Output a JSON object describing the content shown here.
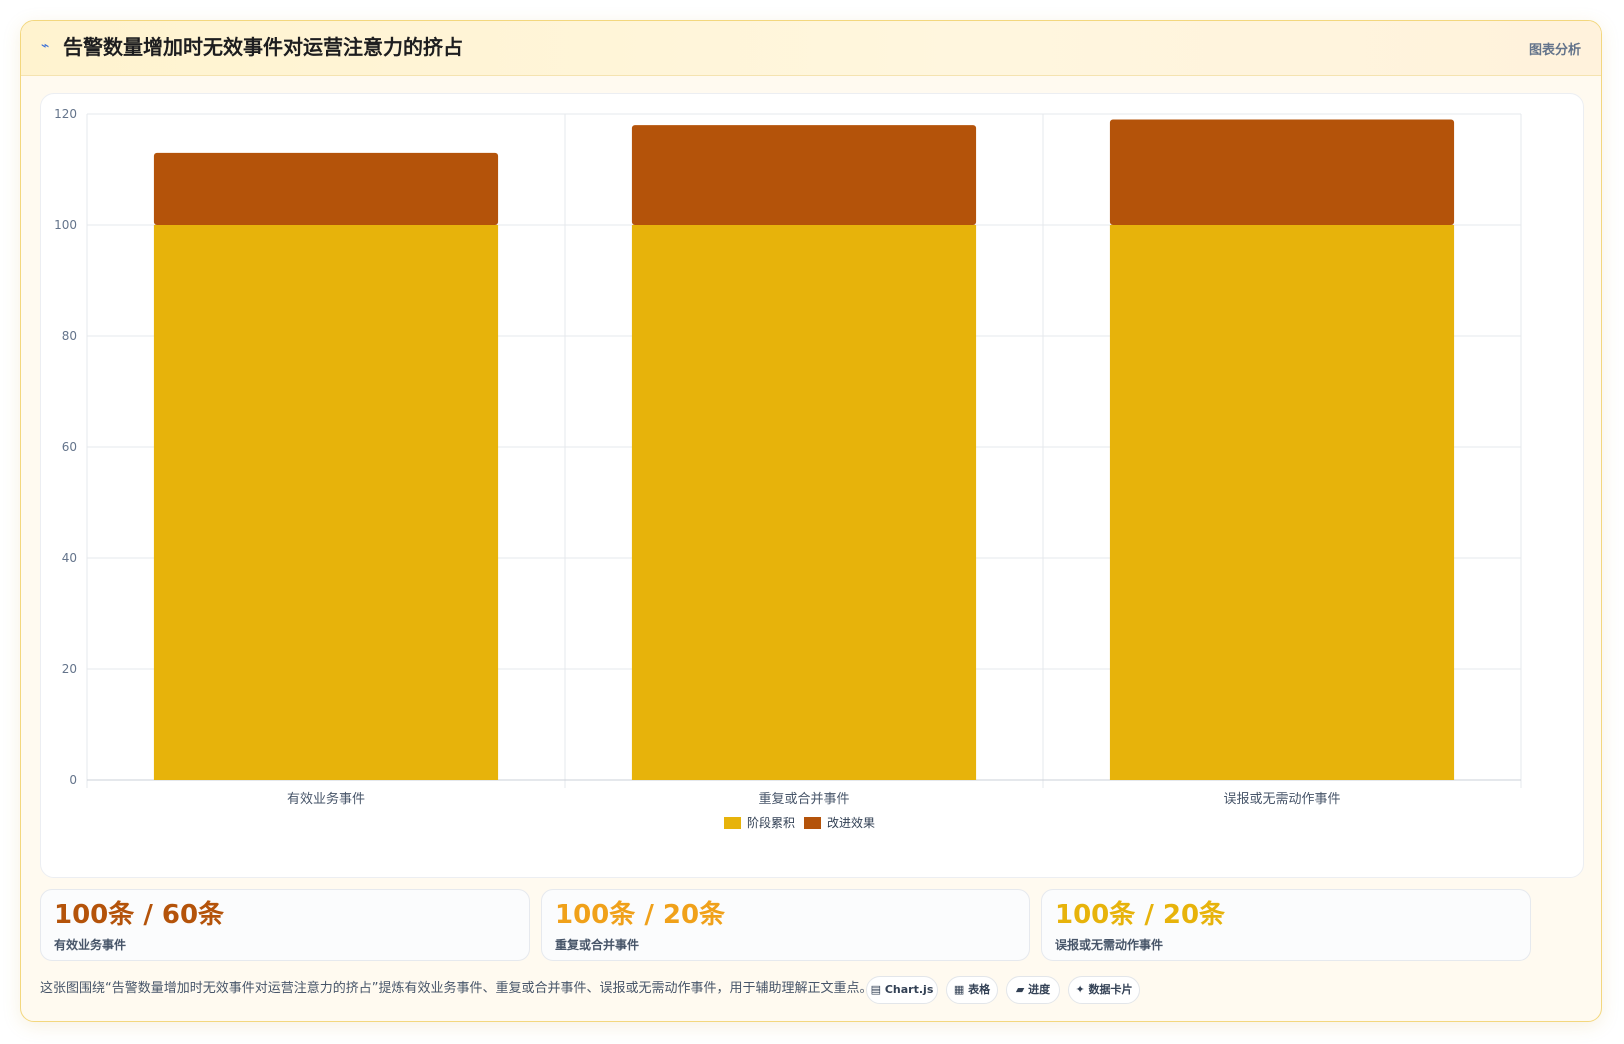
{
  "header": {
    "icon": "wave-icon",
    "title": "告警数量增加时无效事件对运营注意力的挤占",
    "tag": "图表分析"
  },
  "chart_data": {
    "type": "bar",
    "stacked": true,
    "categories": [
      "有效业务事件",
      "重复或合并事件",
      "误报或无需动作事件"
    ],
    "series": [
      {
        "name": "阶段累积",
        "values": [
          100,
          100,
          100
        ],
        "color": "#e7b30b"
      },
      {
        "name": "改进效果",
        "values": [
          13,
          18,
          19
        ],
        "color": "#b4530a"
      }
    ],
    "ylim": [
      0,
      120
    ],
    "yticks": [
      "0",
      "20",
      "40",
      "60",
      "80",
      "100",
      "120"
    ],
    "grid": true,
    "legend_position": "bottom-center"
  },
  "stats": [
    {
      "value": "100条 / 60条",
      "label": "有效业务事件",
      "color": "#b4530a"
    },
    {
      "value": "100条 / 20条",
      "label": "重复或合并事件",
      "color": "#f0a11a"
    },
    {
      "value": "100条 / 20条",
      "label": "误报或无需动作事件",
      "color": "#e7b30b"
    }
  ],
  "footer": {
    "text": "这张图围绕“告警数量增加时无效事件对运营注意力的挤占”提炼有效业务事件、重复或合并事件、误报或无需动作事件，用于辅助理解正文重点。",
    "chips": [
      {
        "icon": "▤",
        "label": "Chart.js"
      },
      {
        "icon": "▦",
        "label": "表格"
      },
      {
        "icon": "▰",
        "label": "进度"
      },
      {
        "icon": "✦",
        "label": "数据卡片"
      }
    ]
  }
}
